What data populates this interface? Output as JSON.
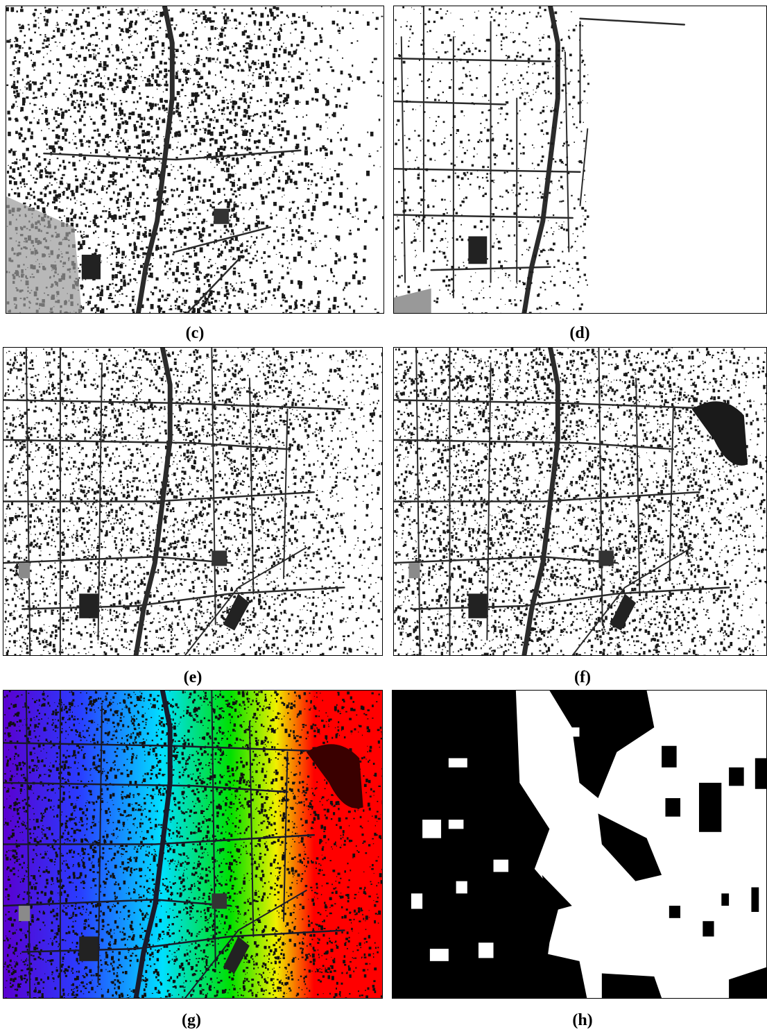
{
  "panels": [
    {
      "id": "c",
      "label": "(c)",
      "style": "dense-binary"
    },
    {
      "id": "d",
      "label": "(d)",
      "style": "road-network"
    },
    {
      "id": "e",
      "label": "(e)",
      "style": "binary-urban"
    },
    {
      "id": "f",
      "label": "(f)",
      "style": "binary-urban-dark-patch"
    },
    {
      "id": "g",
      "label": "(g)",
      "style": "rainbow-gradient"
    },
    {
      "id": "h",
      "label": "(h)",
      "style": "binary-mask"
    }
  ],
  "colors": {
    "ink": "#1a1a1a",
    "road": "#2b2b2b",
    "gray": "#8a8a8a",
    "rainbow": [
      "#5a00d0",
      "#2a3cff",
      "#00e0ff",
      "#00e000",
      "#f0f000",
      "#ff0000"
    ]
  }
}
